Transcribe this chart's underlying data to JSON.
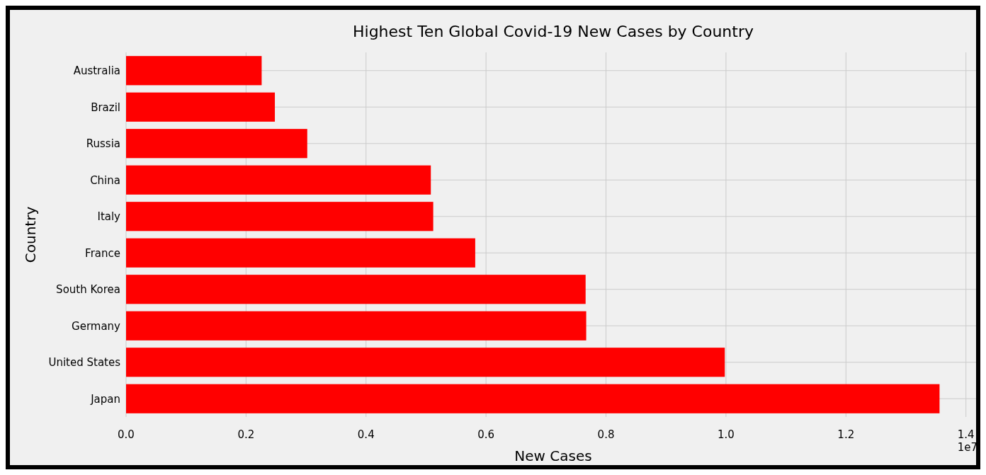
{
  "chart_data": {
    "type": "bar",
    "orientation": "horizontal",
    "title": "Highest Ten Global Covid-19 New Cases by Country",
    "xlabel": "New Cases",
    "ylabel": "Country",
    "categories": [
      "Australia",
      "Brazil",
      "Russia",
      "China",
      "Italy",
      "France",
      "South Korea",
      "Germany",
      "United States",
      "Japan"
    ],
    "values": [
      0.226,
      0.248,
      0.302,
      0.508,
      0.512,
      0.582,
      0.766,
      0.767,
      0.998,
      1.356
    ],
    "color": "#ff0000",
    "xlim": [
      0,
      1.424
    ],
    "xticks": [
      {
        "value": 0,
        "label": "0.0"
      },
      0.2,
      0.4,
      0.6,
      0.8,
      {
        "value": 1,
        "label": "1.0"
      },
      1.2,
      1.4
    ],
    "annotations": [
      "1e7"
    ],
    "grid": true
  }
}
